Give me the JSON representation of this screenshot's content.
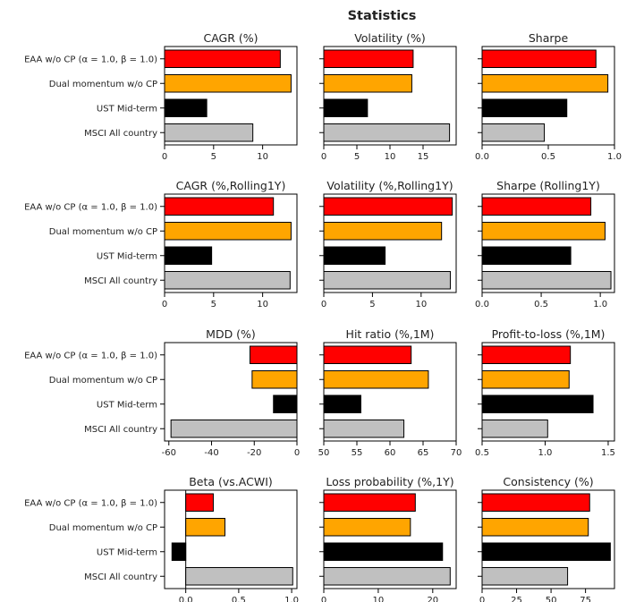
{
  "figure": {
    "title": "Statistics"
  },
  "categories": [
    "EAA w/o CP (α = 1.0, β = 1.0)",
    "Dual momentum w/o CP",
    "UST Mid-term",
    "MSCI All country"
  ],
  "colors": [
    "#ff0000",
    "#ffa500",
    "#000000",
    "#c0c0c0"
  ],
  "chart_data": [
    {
      "type": "bar",
      "orientation": "horizontal",
      "title": "CAGR (%)",
      "values": [
        11.8,
        12.9,
        4.3,
        9.0
      ],
      "xlim": [
        0,
        13.5
      ],
      "xticks": [
        0,
        5,
        10
      ],
      "tick_labels": [
        "0",
        "5",
        "10"
      ]
    },
    {
      "type": "bar",
      "orientation": "horizontal",
      "title": "Volatility (%)",
      "values": [
        13.5,
        13.3,
        6.6,
        19.0
      ],
      "xlim": [
        0,
        20
      ],
      "xticks": [
        0,
        5,
        10,
        15
      ],
      "tick_labels": [
        "0",
        "5",
        "10",
        "15"
      ]
    },
    {
      "type": "bar",
      "orientation": "horizontal",
      "title": "Sharpe",
      "values": [
        0.86,
        0.95,
        0.64,
        0.47
      ],
      "xlim": [
        0,
        1.0
      ],
      "xticks": [
        0,
        0.5,
        1.0
      ],
      "tick_labels": [
        "0.0",
        "0.5",
        "1.0"
      ]
    },
    {
      "type": "bar",
      "orientation": "horizontal",
      "title": "CAGR (%,Rolling1Y)",
      "values": [
        11.1,
        12.9,
        4.8,
        12.8
      ],
      "xlim": [
        0,
        13.5
      ],
      "xticks": [
        0,
        5,
        10
      ],
      "tick_labels": [
        "0",
        "5",
        "10"
      ]
    },
    {
      "type": "bar",
      "orientation": "horizontal",
      "title": "Volatility (%,Rolling1Y)",
      "values": [
        13.2,
        12.1,
        6.3,
        13.0
      ],
      "xlim": [
        0,
        13.6
      ],
      "xticks": [
        0,
        5,
        10
      ],
      "tick_labels": [
        "0",
        "5",
        "10"
      ]
    },
    {
      "type": "bar",
      "orientation": "horizontal",
      "title": "Sharpe (Rolling1Y)",
      "values": [
        0.92,
        1.04,
        0.75,
        1.09
      ],
      "xlim": [
        0,
        1.12
      ],
      "xticks": [
        0,
        0.5,
        1.0
      ],
      "tick_labels": [
        "0.0",
        "0.5",
        "1.0"
      ]
    },
    {
      "type": "bar",
      "orientation": "horizontal",
      "title": "MDD (%)",
      "values": [
        -22,
        -21,
        -11,
        -59
      ],
      "xlim": [
        -62,
        0
      ],
      "xticks": [
        -60,
        -40,
        -20,
        0
      ],
      "tick_labels": [
        "-60",
        "-40",
        "-20",
        "0"
      ]
    },
    {
      "type": "bar",
      "orientation": "horizontal",
      "title": "Hit ratio (%,1M)",
      "values": [
        63.2,
        65.8,
        55.6,
        62.1
      ],
      "xlim": [
        50,
        70
      ],
      "xticks": [
        50,
        55,
        60,
        65,
        70
      ],
      "tick_labels": [
        "50",
        "55",
        "60",
        "65",
        "70"
      ]
    },
    {
      "type": "bar",
      "orientation": "horizontal",
      "title": "Profit-to-loss (%,1M)",
      "values": [
        1.2,
        1.19,
        1.38,
        1.02
      ],
      "xlim": [
        0.5,
        1.55
      ],
      "xticks": [
        0.5,
        1.0,
        1.5
      ],
      "tick_labels": [
        "0.5",
        "1.0",
        "1.5"
      ]
    },
    {
      "type": "bar",
      "orientation": "horizontal",
      "title": "Beta (vs.ACWI)",
      "values": [
        0.26,
        0.37,
        -0.13,
        1.01
      ],
      "xlim": [
        -0.2,
        1.05
      ],
      "xticks": [
        0,
        0.5,
        1.0
      ],
      "tick_labels": [
        "0.0",
        "0.5",
        "1.0"
      ]
    },
    {
      "type": "bar",
      "orientation": "horizontal",
      "title": "Loss probability (%,1Y)",
      "values": [
        16.8,
        15.9,
        21.8,
        23.2
      ],
      "xlim": [
        0,
        24.3
      ],
      "xticks": [
        0,
        10,
        20
      ],
      "tick_labels": [
        "0",
        "10",
        "20"
      ]
    },
    {
      "type": "bar",
      "orientation": "horizontal",
      "title": "Consistency (%)",
      "values": [
        78,
        77,
        93,
        62
      ],
      "xlim": [
        0,
        96
      ],
      "xticks": [
        0,
        25,
        50,
        75
      ],
      "tick_labels": [
        "0",
        "25",
        "50",
        "75"
      ]
    }
  ]
}
